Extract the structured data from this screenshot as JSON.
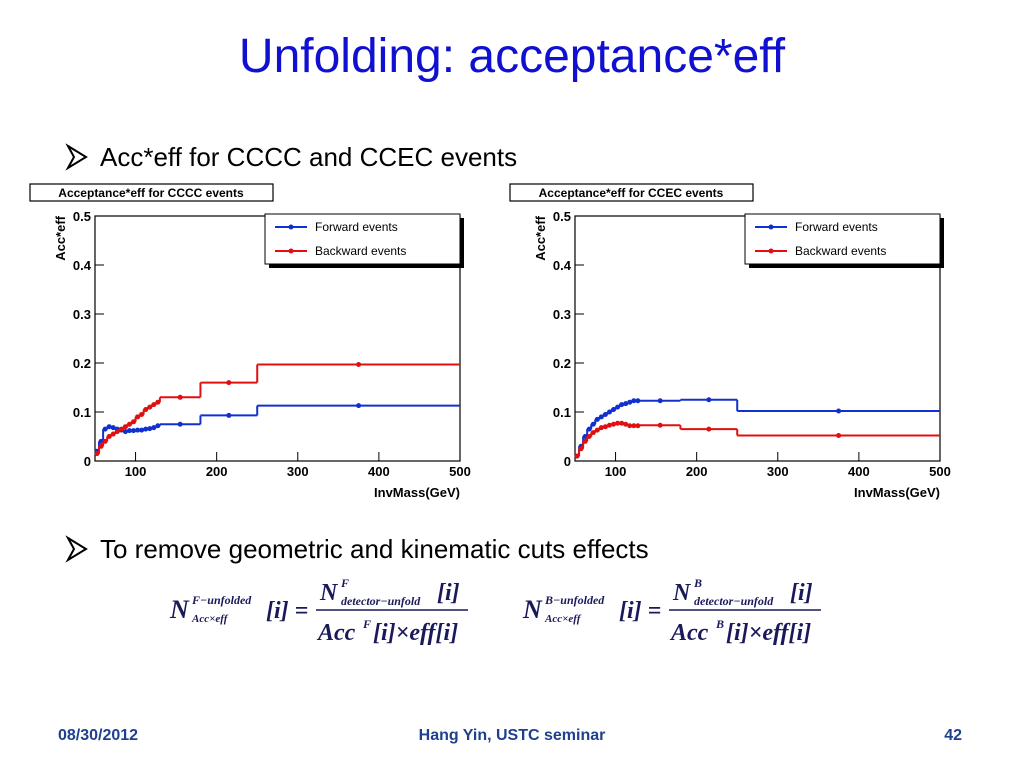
{
  "title": "Unfolding: acceptance*eff",
  "bullets": [
    "Acc*eff for CCCC and CCEC events",
    "To remove geometric and kinematic cuts effects"
  ],
  "chart_data": [
    {
      "type": "histogram",
      "title": "Acceptance*eff for CCCC events",
      "xlabel": "InvMass(GeV)",
      "ylabel": "Acc*eff",
      "bins": [
        50,
        55,
        60,
        65,
        70,
        75,
        80,
        85,
        90,
        95,
        100,
        105,
        110,
        115,
        120,
        125,
        130,
        180,
        250,
        500
      ],
      "series": [
        {
          "name": "Forward events",
          "color": "#1030d0",
          "values": [
            0.02,
            0.04,
            0.065,
            0.07,
            0.068,
            0.065,
            0.063,
            0.06,
            0.062,
            0.062,
            0.063,
            0.063,
            0.065,
            0.066,
            0.068,
            0.072,
            0.075,
            0.093,
            0.113
          ]
        },
        {
          "name": "Backward events",
          "color": "#e01010",
          "values": [
            0.015,
            0.03,
            0.04,
            0.05,
            0.055,
            0.06,
            0.065,
            0.07,
            0.075,
            0.08,
            0.09,
            0.095,
            0.105,
            0.11,
            0.115,
            0.12,
            0.13,
            0.16,
            0.197
          ]
        }
      ],
      "xlim": [
        50,
        500
      ],
      "ylim": [
        0,
        0.5
      ],
      "xticks": [
        100,
        200,
        300,
        400,
        500
      ],
      "yticks": [
        0,
        0.1,
        0.2,
        0.3,
        0.4,
        0.5
      ],
      "legend": "upper right"
    },
    {
      "type": "histogram",
      "title": "Acceptance*eff for CCEC events",
      "xlabel": "InvMass(GeV)",
      "ylabel": "Acc*eff",
      "bins": [
        50,
        55,
        60,
        65,
        70,
        75,
        80,
        85,
        90,
        95,
        100,
        105,
        110,
        115,
        120,
        125,
        130,
        180,
        250,
        500
      ],
      "series": [
        {
          "name": "Forward events",
          "color": "#1030d0",
          "values": [
            0.01,
            0.03,
            0.05,
            0.065,
            0.075,
            0.085,
            0.09,
            0.095,
            0.1,
            0.105,
            0.11,
            0.115,
            0.117,
            0.12,
            0.123,
            0.123,
            0.123,
            0.125,
            0.102
          ]
        },
        {
          "name": "Backward events",
          "color": "#e01010",
          "values": [
            0.01,
            0.025,
            0.04,
            0.05,
            0.058,
            0.063,
            0.068,
            0.07,
            0.073,
            0.075,
            0.077,
            0.077,
            0.075,
            0.072,
            0.072,
            0.072,
            0.073,
            0.065,
            0.052
          ]
        }
      ],
      "xlim": [
        50,
        500
      ],
      "ylim": [
        0,
        0.5
      ],
      "xticks": [
        100,
        200,
        300,
        400,
        500
      ],
      "yticks": [
        0,
        0.1,
        0.2,
        0.3,
        0.4,
        0.5
      ],
      "legend": "upper right"
    }
  ],
  "formulas": [
    {
      "lhs": "N",
      "lhs_sup": "F−unfolded",
      "lhs_sub": "Acc×eff",
      "index": "[i] =",
      "num": "N",
      "num_sup": "F",
      "num_sub": "detector−unfold",
      "num_index": "[i]",
      "den": "Acc",
      "den_sup": "F",
      "den_rest": "[i]×eff[i]"
    },
    {
      "lhs": "N",
      "lhs_sup": "B−unfolded",
      "lhs_sub": "Acc×eff",
      "index": "[i] =",
      "num": "N",
      "num_sup": "B",
      "num_sub": "detector−unfold",
      "num_index": "[i]",
      "den": "Acc",
      "den_sup": "B",
      "den_rest": "[i]×eff[i]"
    }
  ],
  "footer": {
    "date": "08/30/2012",
    "center": "Hang Yin, USTC seminar",
    "page": "42"
  }
}
